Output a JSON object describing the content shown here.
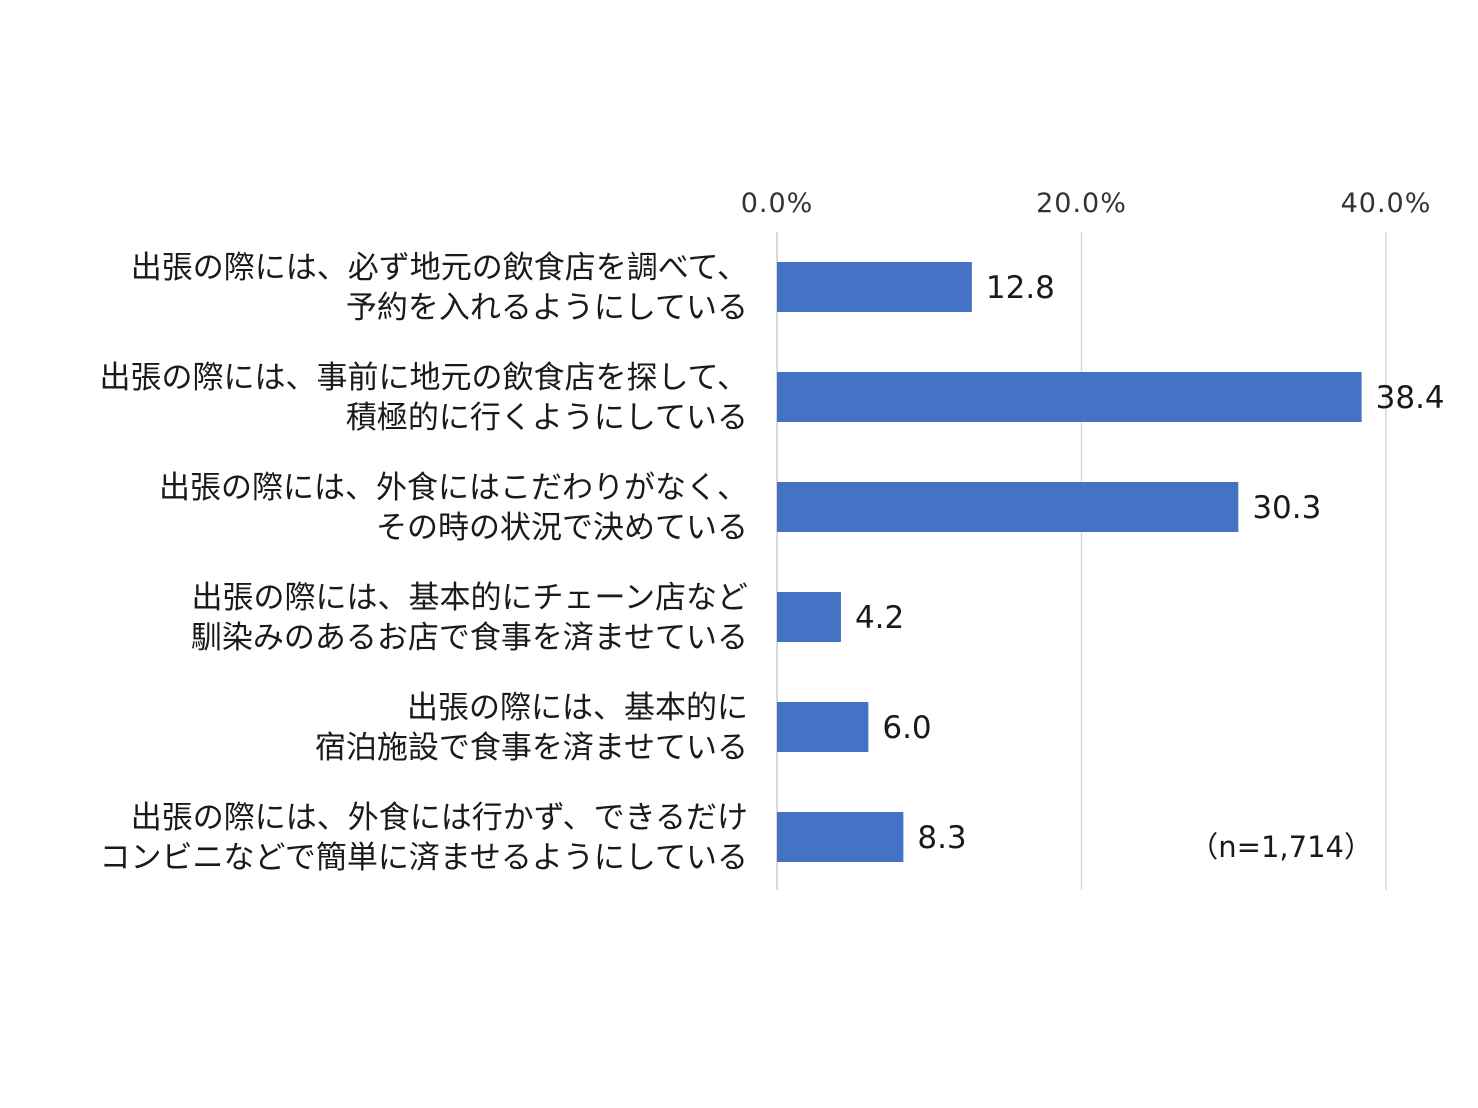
{
  "chart_data": {
    "type": "bar",
    "orientation": "horizontal",
    "categories": [
      [
        "出張の際には、必ず地元の飲食店を調べて、",
        "予約を入れるようにしている"
      ],
      [
        "出張の際には、事前に地元の飲食店を探して、",
        "積極的に行くようにしている"
      ],
      [
        "出張の際には、外食にはこだわりがなく、",
        "その時の状況で決めている"
      ],
      [
        "出張の際には、基本的にチェーン店など",
        "馴染みのあるお店で食事を済ませている"
      ],
      [
        "出張の際には、基本的に",
        "宿泊施設で食事を済ませている"
      ],
      [
        "出張の際には、外食には行かず、できるだけ",
        "コンビニなどで簡単に済ませるようにしている"
      ]
    ],
    "values": [
      12.8,
      38.4,
      30.3,
      4.2,
      6.0,
      8.3
    ],
    "value_labels": [
      "12.8",
      "38.4",
      "30.3",
      "4.2",
      "6.0",
      "8.3"
    ],
    "xlim": [
      0,
      40
    ],
    "ticks": [
      0,
      20,
      40
    ],
    "tick_labels": [
      "0.0%",
      "20.0%",
      "40.0%"
    ],
    "tick_position": "top",
    "grid": true,
    "bar_color": "#4472C4",
    "note": "（n=1,714）"
  }
}
